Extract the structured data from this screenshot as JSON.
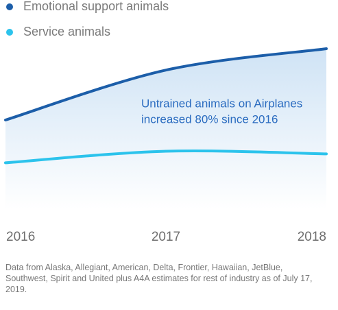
{
  "chart_data": {
    "type": "line",
    "categories": [
      "2016",
      "2017",
      "2018"
    ],
    "series": [
      {
        "name": "Emotional support animals",
        "color": "#1c5ea9",
        "values": [
          100,
          156,
          180
        ]
      },
      {
        "name": "Service animals",
        "color": "#2cc3ec",
        "values": [
          52,
          65,
          62
        ]
      }
    ],
    "ylim": [
      0,
      200
    ],
    "annotation": [
      "Untrained animals on Airplanes",
      "increased 80% since 2016"
    ],
    "note": "Data from Alaska, Allegiant, American, Delta, Frontier, Hawaiian, JetBlue, Southwest, Spirit and United plus A4A estimates for rest of industry as of July 17, 2019."
  }
}
